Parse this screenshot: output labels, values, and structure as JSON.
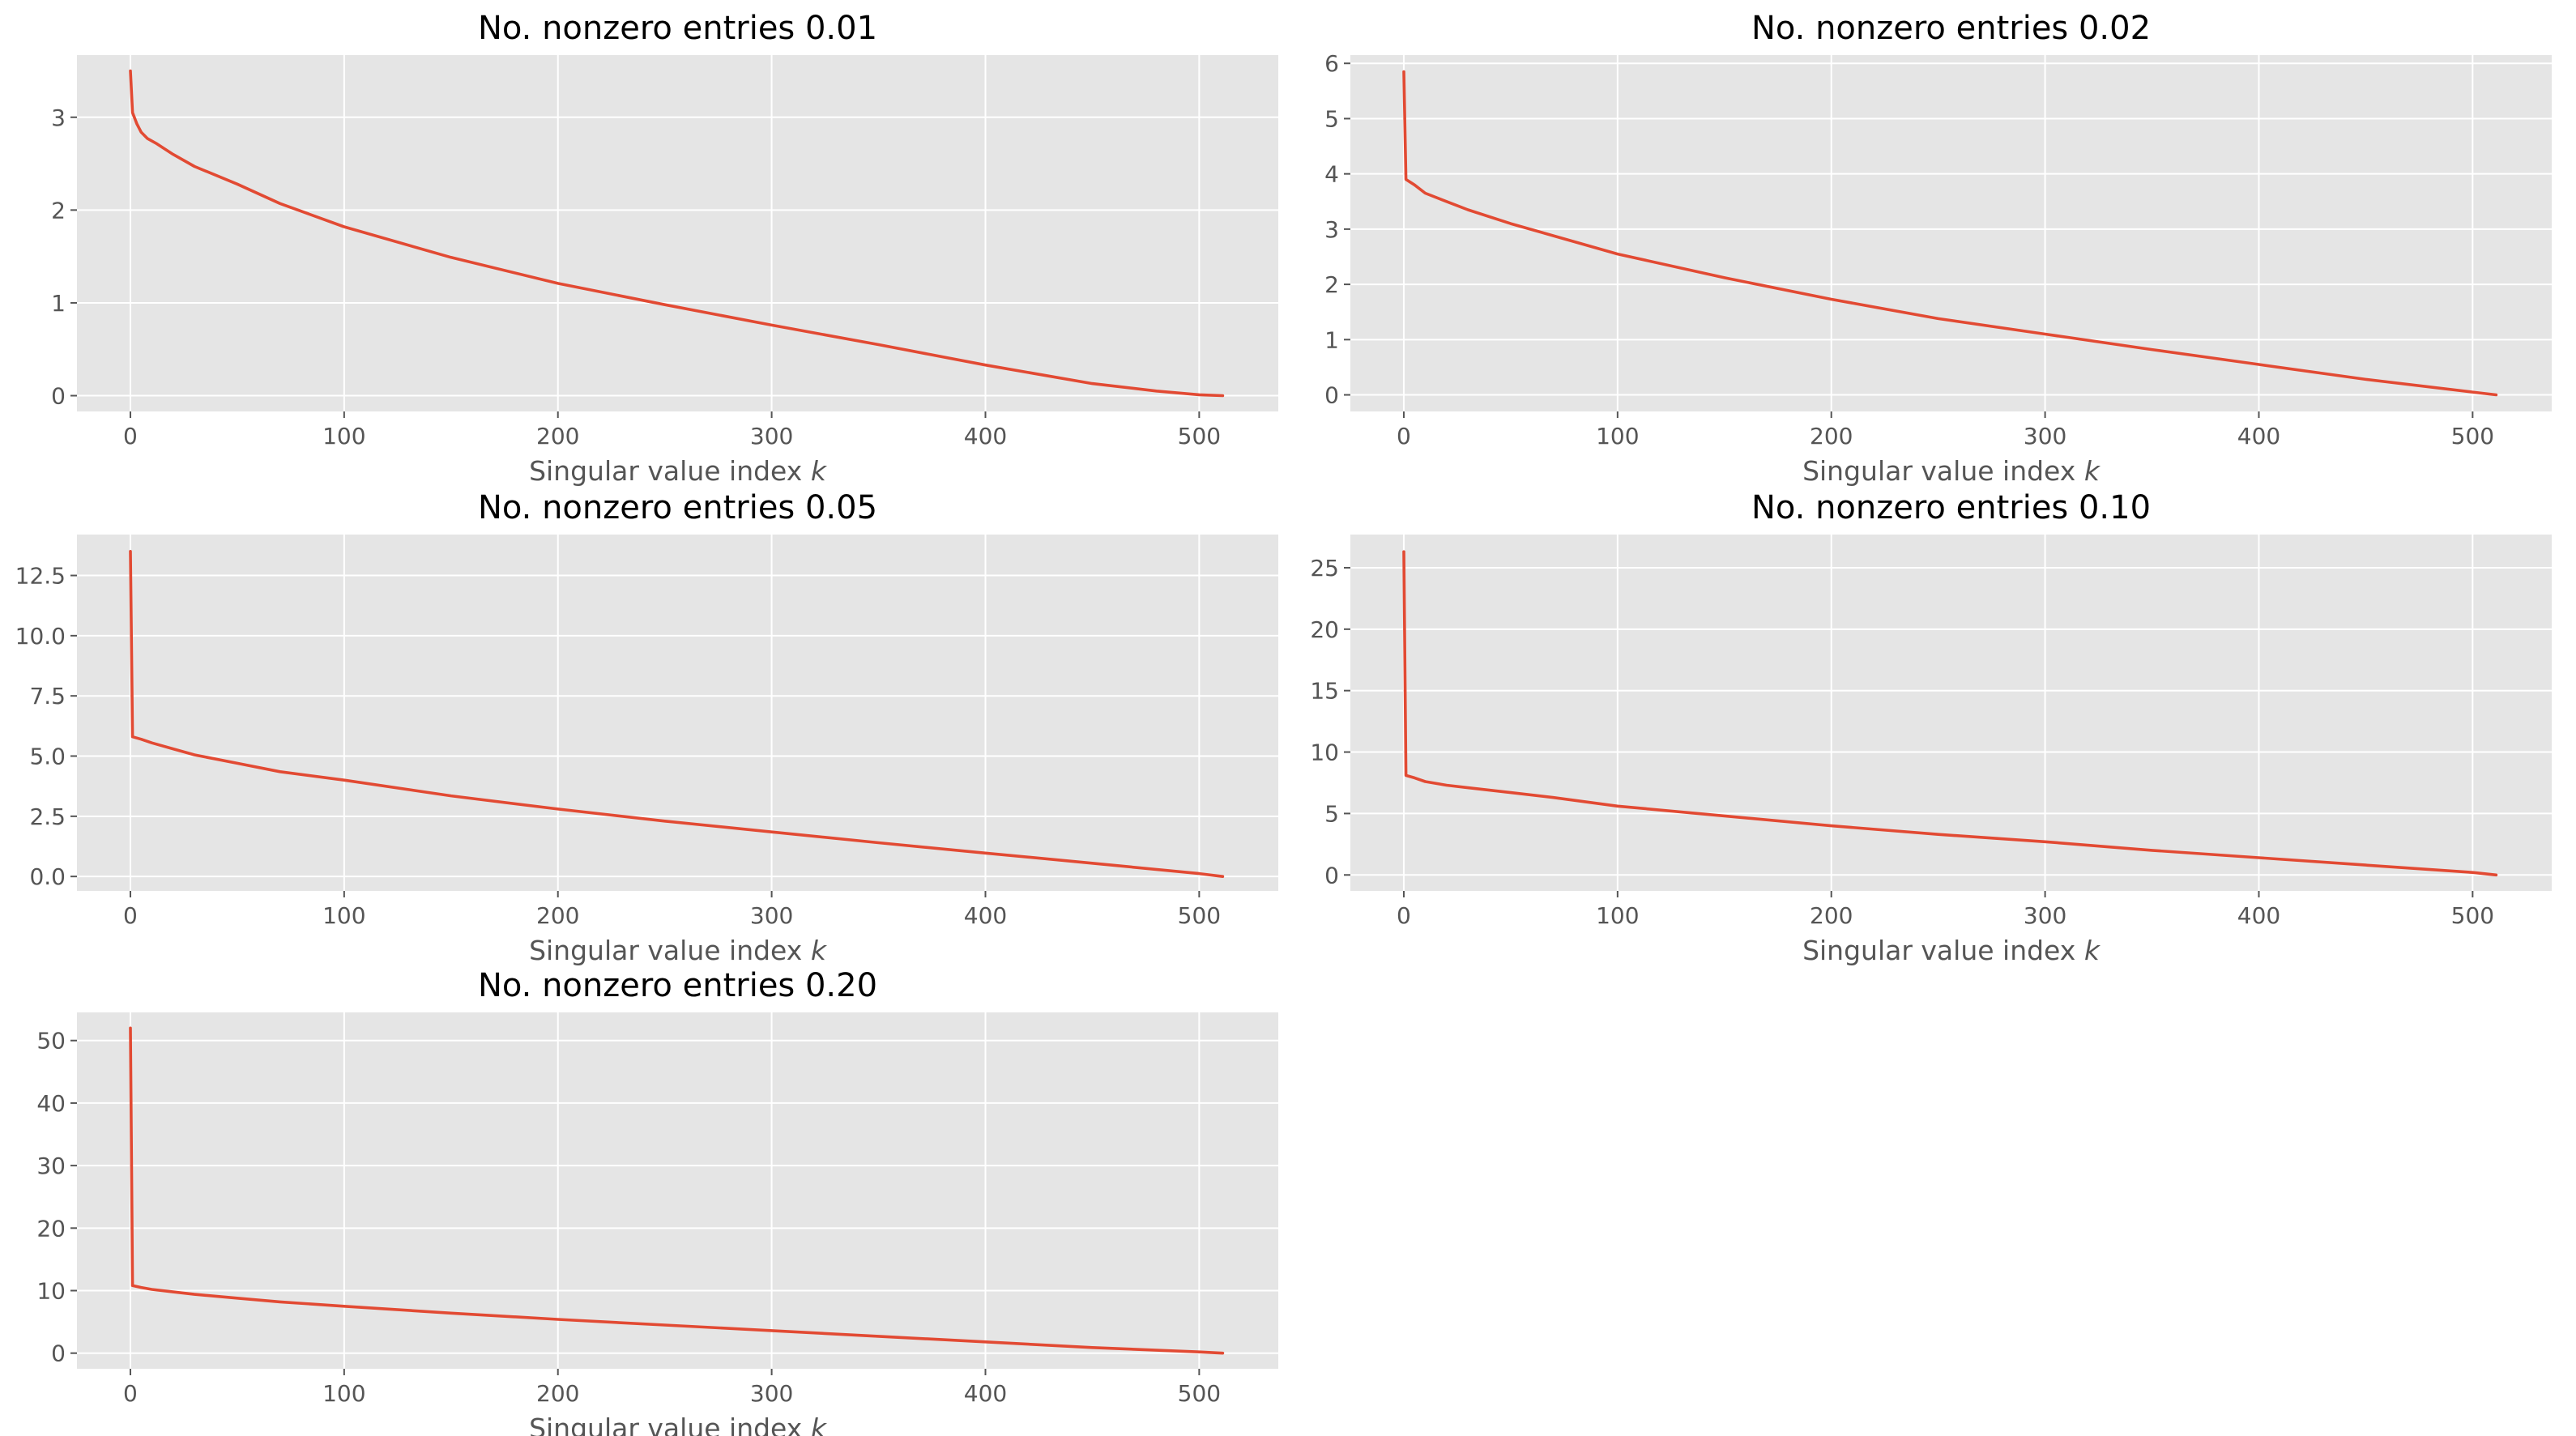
{
  "colors": {
    "line": "#E24A33",
    "plot_background": "#E5E5E5",
    "grid": "#FFFFFF",
    "tick_text": "#555555"
  },
  "chart_data": [
    {
      "type": "line",
      "title": "No. nonzero entries 0.01",
      "xlabel": "Singular value index",
      "xlabel_var": "k",
      "xlim": [
        -25,
        537
      ],
      "ylim": [
        -0.17,
        3.67
      ],
      "xticks": [
        0,
        100,
        200,
        300,
        400,
        500
      ],
      "yticks": [
        0,
        1,
        2,
        3
      ],
      "grid": true,
      "x": [
        0,
        1,
        3,
        5,
        8,
        12,
        20,
        30,
        50,
        70,
        100,
        150,
        200,
        250,
        300,
        350,
        400,
        450,
        480,
        500,
        511
      ],
      "y": [
        3.5,
        3.05,
        2.93,
        2.84,
        2.77,
        2.72,
        2.6,
        2.47,
        2.28,
        2.07,
        1.82,
        1.49,
        1.21,
        0.98,
        0.76,
        0.55,
        0.33,
        0.13,
        0.05,
        0.01,
        0.0
      ]
    },
    {
      "type": "line",
      "title": "No. nonzero entries 0.02",
      "xlabel": "Singular value index",
      "xlabel_var": "k",
      "xlim": [
        -25,
        537
      ],
      "ylim": [
        -0.3,
        6.15
      ],
      "xticks": [
        0,
        100,
        200,
        300,
        400,
        500
      ],
      "yticks": [
        0,
        1,
        2,
        3,
        4,
        5,
        6
      ],
      "grid": true,
      "x": [
        0,
        1,
        5,
        10,
        20,
        30,
        50,
        70,
        100,
        150,
        200,
        250,
        300,
        350,
        400,
        450,
        500,
        511
      ],
      "y": [
        5.85,
        3.9,
        3.8,
        3.65,
        3.5,
        3.35,
        3.1,
        2.88,
        2.55,
        2.12,
        1.73,
        1.38,
        1.1,
        0.82,
        0.55,
        0.28,
        0.05,
        0.0
      ]
    },
    {
      "type": "line",
      "title": "No. nonzero entries 0.05",
      "xlabel": "Singular value index",
      "xlabel_var": "k",
      "xlim": [
        -25,
        537
      ],
      "ylim": [
        -0.6,
        14.2
      ],
      "xticks": [
        0,
        100,
        200,
        300,
        400,
        500
      ],
      "yticks": [
        0.0,
        2.5,
        5.0,
        7.5,
        10.0,
        12.5
      ],
      "ytick_labels": [
        "0.0",
        "2.5",
        "5.0",
        "7.5",
        "10.0",
        "12.5"
      ],
      "grid": true,
      "x": [
        0,
        1,
        5,
        10,
        20,
        30,
        50,
        70,
        100,
        150,
        200,
        250,
        300,
        350,
        400,
        450,
        500,
        511
      ],
      "y": [
        13.5,
        5.8,
        5.7,
        5.55,
        5.3,
        5.05,
        4.7,
        4.35,
        4.0,
        3.35,
        2.8,
        2.3,
        1.85,
        1.4,
        0.97,
        0.55,
        0.12,
        0.0
      ]
    },
    {
      "type": "line",
      "title": "No. nonzero entries 0.10",
      "xlabel": "Singular value index",
      "xlabel_var": "k",
      "xlim": [
        -25,
        537
      ],
      "ylim": [
        -1.3,
        27.7
      ],
      "xticks": [
        0,
        100,
        200,
        300,
        400,
        500
      ],
      "yticks": [
        0,
        5,
        10,
        15,
        20,
        25
      ],
      "grid": true,
      "x": [
        0,
        1,
        5,
        10,
        20,
        30,
        50,
        70,
        100,
        150,
        200,
        250,
        300,
        350,
        400,
        450,
        500,
        511
      ],
      "y": [
        26.3,
        8.1,
        7.9,
        7.6,
        7.3,
        7.1,
        6.7,
        6.3,
        5.6,
        4.8,
        4.0,
        3.3,
        2.7,
        2.0,
        1.4,
        0.8,
        0.2,
        0.0
      ]
    },
    {
      "type": "line",
      "title": "No. nonzero entries 0.20",
      "xlabel": "Singular value index",
      "xlabel_var": "k",
      "xlim": [
        -25,
        537
      ],
      "ylim": [
        -2.5,
        54.5
      ],
      "xticks": [
        0,
        100,
        200,
        300,
        400,
        500
      ],
      "yticks": [
        0,
        10,
        20,
        30,
        40,
        50
      ],
      "grid": true,
      "x": [
        0,
        1,
        5,
        10,
        20,
        30,
        50,
        70,
        100,
        150,
        200,
        250,
        300,
        350,
        400,
        450,
        500,
        511
      ],
      "y": [
        52.0,
        10.8,
        10.5,
        10.2,
        9.8,
        9.4,
        8.8,
        8.2,
        7.5,
        6.4,
        5.4,
        4.5,
        3.6,
        2.7,
        1.8,
        0.9,
        0.2,
        0.0
      ]
    }
  ]
}
